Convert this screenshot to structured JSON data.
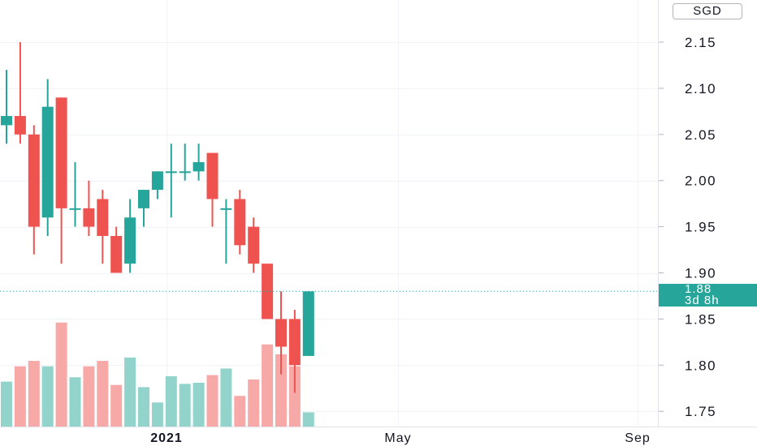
{
  "chart_data": {
    "type": "candlestick",
    "currency": "SGD",
    "last_price": "1.88",
    "countdown": "3d 8h",
    "x_labels": [
      "2021",
      "May",
      "Sep"
    ],
    "y_ticks": [
      "2.15",
      "2.10",
      "2.05",
      "2.00",
      "1.95",
      "1.90",
      "1.85",
      "1.80",
      "1.75"
    ],
    "ylim": [
      1.73,
      2.19
    ],
    "colors": {
      "up": "#26a69a",
      "down": "#ef5350",
      "vol_up": "#92d4cc",
      "vol_down": "#f7a9a7",
      "grid": "#f0f3fa",
      "price_line": "#26a69a"
    },
    "candles": [
      {
        "o": 2.06,
        "h": 2.12,
        "l": 2.04,
        "c": 2.07,
        "v": 0.41
      },
      {
        "o": 2.07,
        "h": 2.15,
        "l": 2.04,
        "c": 2.05,
        "v": 0.55
      },
      {
        "o": 2.05,
        "h": 2.06,
        "l": 1.92,
        "c": 1.95,
        "v": 0.6
      },
      {
        "o": 1.96,
        "h": 2.11,
        "l": 1.94,
        "c": 2.08,
        "v": 0.55
      },
      {
        "o": 2.09,
        "h": 2.09,
        "l": 1.91,
        "c": 1.97,
        "v": 0.95
      },
      {
        "o": 1.97,
        "h": 2.02,
        "l": 1.95,
        "c": 1.97,
        "v": 0.45
      },
      {
        "o": 1.97,
        "h": 2.0,
        "l": 1.94,
        "c": 1.95,
        "v": 0.55
      },
      {
        "o": 1.98,
        "h": 1.99,
        "l": 1.91,
        "c": 1.94,
        "v": 0.6
      },
      {
        "o": 1.94,
        "h": 1.95,
        "l": 1.9,
        "c": 1.9,
        "v": 0.38
      },
      {
        "o": 1.91,
        "h": 1.98,
        "l": 1.9,
        "c": 1.96,
        "v": 0.63
      },
      {
        "o": 1.97,
        "h": 1.99,
        "l": 1.95,
        "c": 1.99,
        "v": 0.36
      },
      {
        "o": 1.99,
        "h": 2.01,
        "l": 1.98,
        "c": 2.01,
        "v": 0.22
      },
      {
        "o": 2.01,
        "h": 2.04,
        "l": 1.96,
        "c": 2.01,
        "v": 0.46
      },
      {
        "o": 2.01,
        "h": 2.04,
        "l": 2.0,
        "c": 2.01,
        "v": 0.39
      },
      {
        "o": 2.01,
        "h": 2.04,
        "l": 2.0,
        "c": 2.02,
        "v": 0.4
      },
      {
        "o": 2.03,
        "h": 2.03,
        "l": 1.95,
        "c": 1.98,
        "v": 0.47
      },
      {
        "o": 1.97,
        "h": 1.98,
        "l": 1.91,
        "c": 1.97,
        "v": 0.53
      },
      {
        "o": 1.98,
        "h": 1.99,
        "l": 1.92,
        "c": 1.93,
        "v": 0.28
      },
      {
        "o": 1.95,
        "h": 1.96,
        "l": 1.9,
        "c": 1.91,
        "v": 0.43
      },
      {
        "o": 1.91,
        "h": 1.91,
        "l": 1.85,
        "c": 1.85,
        "v": 0.75
      },
      {
        "o": 1.85,
        "h": 1.88,
        "l": 1.79,
        "c": 1.82,
        "v": 0.66
      },
      {
        "o": 1.85,
        "h": 1.86,
        "l": 1.77,
        "c": 1.8,
        "v": 0.55
      },
      {
        "o": 1.81,
        "h": 1.88,
        "l": 1.81,
        "c": 1.88,
        "v": 0.13
      }
    ]
  }
}
